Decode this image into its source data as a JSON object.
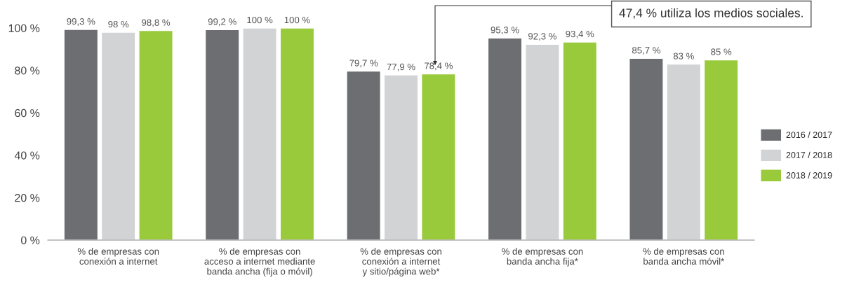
{
  "chart_data": {
    "type": "bar",
    "categories": [
      "% de empresas con\nconexión a internet",
      "% de empresas con\nacceso a internet mediante\nbanda ancha (fija o móvil)",
      "% de empresas con\nconexión a internet\ny sitio/página web*",
      "% de empresas con\nbanda ancha fija*",
      "% de empresas con\nbanda ancha móvil*"
    ],
    "series": [
      {
        "name": "2016 / 2017",
        "color": "#6d6e71",
        "values": [
          99.3,
          99.2,
          79.7,
          95.3,
          85.7
        ],
        "value_labels": [
          "99,3 %",
          "99,2 %",
          "79,7 %",
          "95,3 %",
          "85,7 %"
        ]
      },
      {
        "name": "2017 / 2018",
        "color": "#d1d3d4",
        "values": [
          98,
          100,
          77.9,
          92.3,
          83
        ],
        "value_labels": [
          "98 %",
          "100 %",
          "77,9 %",
          "92,3 %",
          "83 %"
        ]
      },
      {
        "name": "2018 / 2019",
        "color": "#99ca3c",
        "values": [
          98.8,
          100,
          78.4,
          93.4,
          85
        ],
        "value_labels": [
          "98,8 %",
          "100 %",
          "78,4 %",
          "93,4 %",
          "85 %"
        ]
      }
    ],
    "ylim": [
      0,
      100
    ],
    "yticks": [
      {
        "value": 0,
        "label": "0 %"
      },
      {
        "value": 20,
        "label": "20 %"
      },
      {
        "value": 40,
        "label": "40 %"
      },
      {
        "value": 60,
        "label": "60 %"
      },
      {
        "value": 80,
        "label": "80 %"
      },
      {
        "value": 100,
        "label": "100 %"
      }
    ],
    "grid": false,
    "legend": "right",
    "annotations": [
      "47,4 % utiliza los medios sociales."
    ]
  }
}
